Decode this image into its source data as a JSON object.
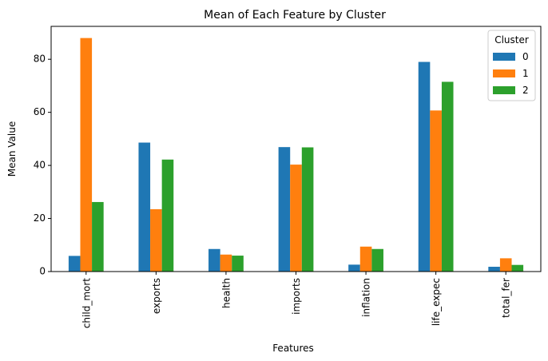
{
  "chart_data": {
    "type": "bar",
    "title": "Mean of Each Feature by Cluster",
    "xlabel": "Features",
    "ylabel": "Mean Value",
    "categories": [
      "child_mort",
      "exports",
      "health",
      "imports",
      "inflation",
      "life_expec",
      "total_fer"
    ],
    "series": [
      {
        "name": "0",
        "color": "#1f77b4",
        "values": [
          5.9,
          48.6,
          8.5,
          46.9,
          2.6,
          79.0,
          1.8
        ]
      },
      {
        "name": "1",
        "color": "#ff7f0e",
        "values": [
          88.0,
          23.5,
          6.4,
          40.3,
          9.4,
          60.7,
          5.0
        ]
      },
      {
        "name": "2",
        "color": "#2ca02c",
        "values": [
          26.2,
          42.2,
          6.0,
          46.8,
          8.5,
          71.5,
          2.5
        ]
      }
    ],
    "ylim": [
      0,
      92.4
    ],
    "yticks": [
      0,
      20,
      40,
      60,
      80
    ],
    "legend": {
      "title": "Cluster",
      "position": "top-right"
    },
    "grid": false
  }
}
